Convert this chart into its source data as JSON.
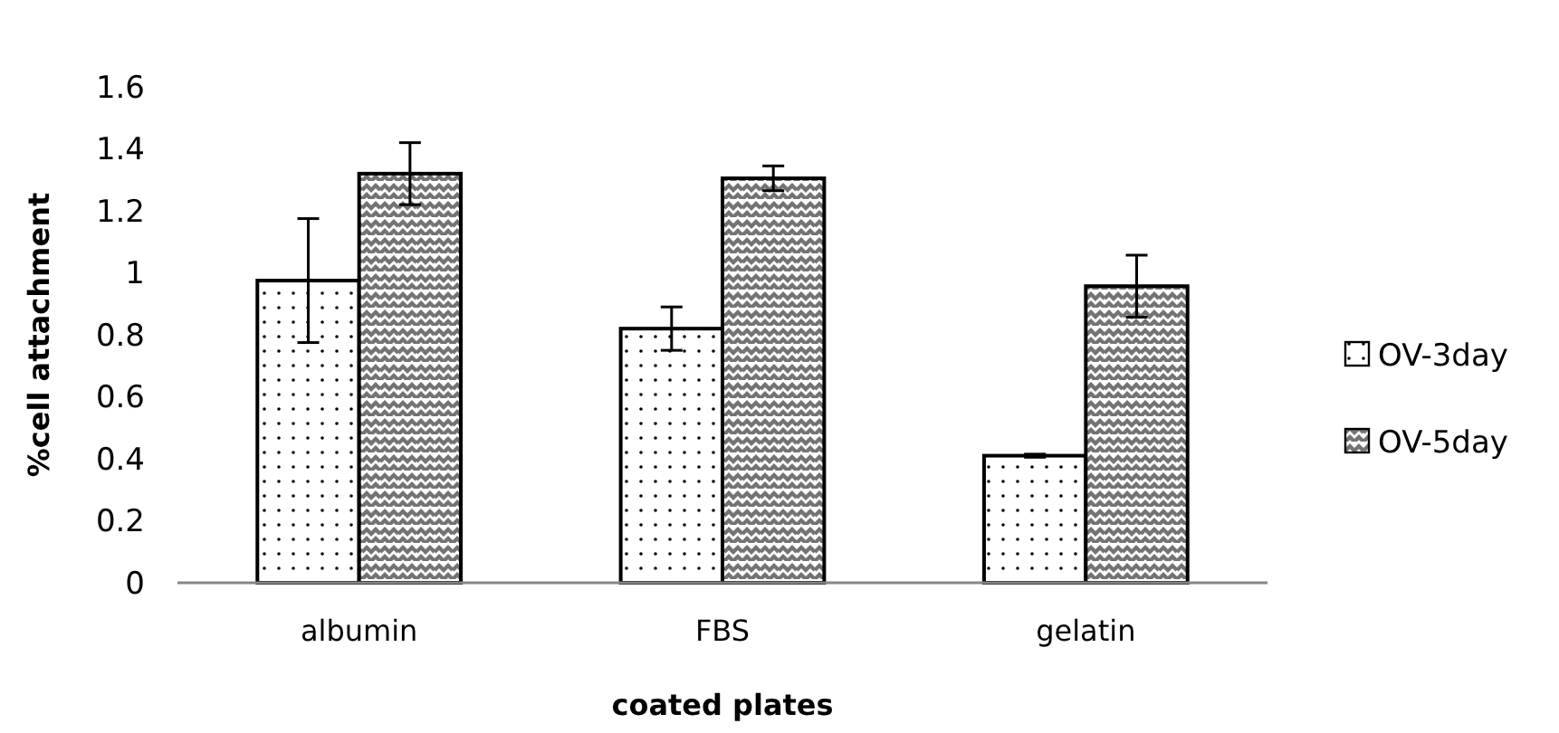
{
  "chart_data": {
    "type": "bar",
    "xlabel": "coated plates",
    "ylabel": "%cell attachment",
    "categories": [
      "albumin",
      "FBS",
      "gelatin"
    ],
    "series": [
      {
        "name": "OV-3day",
        "color": "#000000",
        "values": [
          0.975,
          0.82,
          0.41
        ],
        "errors": [
          0.2,
          0.07,
          0.005
        ]
      },
      {
        "name": "OV-5day",
        "color": "#000000",
        "values": [
          1.32,
          1.305,
          0.957
        ],
        "errors": [
          0.1,
          0.04,
          0.1
        ]
      }
    ],
    "ylim": [
      0,
      1.6
    ],
    "yticks": [
      0,
      0.2,
      0.4,
      0.6,
      0.8,
      {
        "value": 1,
        "label": "1"
      },
      1.2,
      1.4,
      1.6
    ],
    "grid": false,
    "legend": "right"
  }
}
